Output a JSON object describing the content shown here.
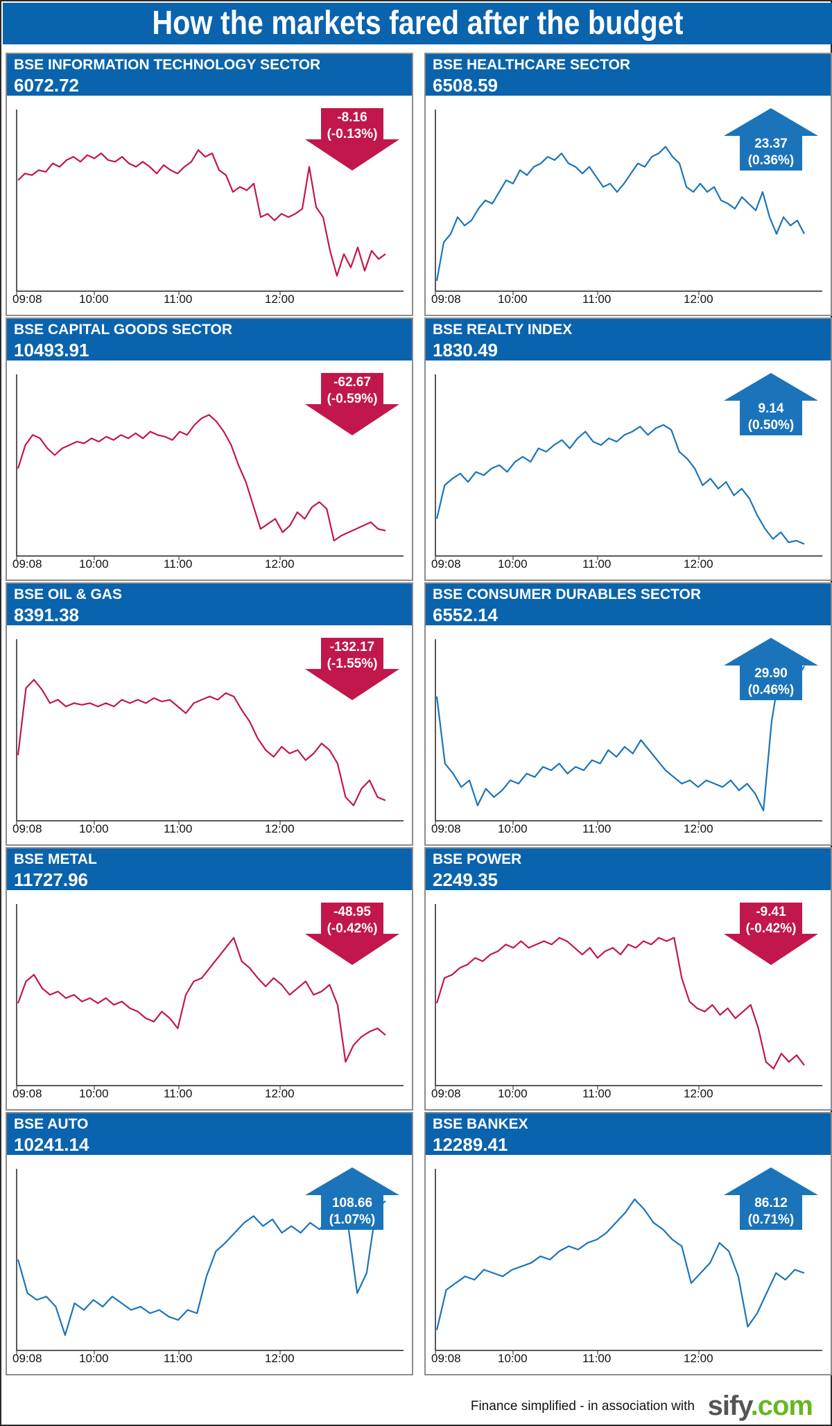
{
  "title": "How the markets fared after the budget",
  "footer": {
    "text": "Finance simplified - in association with",
    "logo_main": "sify",
    "logo_dot": ".",
    "logo_com": "com"
  },
  "x_ticks": [
    "09:08",
    "10:00",
    "11:00",
    "12:00"
  ],
  "colors": {
    "header": "#0a63ad",
    "down": "#c1174a",
    "up": "#1b74b9"
  },
  "chart_data": [
    {
      "type": "line",
      "name": "BSE INFORMATION TECHNOLOGY SECTOR",
      "value": "6072.72",
      "change": "-8.16",
      "change_pct": "(-0.13%)",
      "direction": "down",
      "x": [
        "09:08",
        "10:00",
        "11:00",
        "12:00"
      ],
      "series": [
        0.62,
        0.66,
        0.65,
        0.68,
        0.67,
        0.72,
        0.7,
        0.74,
        0.76,
        0.73,
        0.77,
        0.75,
        0.78,
        0.74,
        0.73,
        0.76,
        0.72,
        0.7,
        0.73,
        0.7,
        0.66,
        0.71,
        0.68,
        0.66,
        0.7,
        0.73,
        0.8,
        0.76,
        0.78,
        0.68,
        0.65,
        0.55,
        0.58,
        0.56,
        0.6,
        0.4,
        0.42,
        0.38,
        0.42,
        0.4,
        0.42,
        0.45,
        0.7,
        0.46,
        0.4,
        0.2,
        0.05,
        0.18,
        0.1,
        0.22,
        0.08,
        0.2,
        0.15,
        0.18
      ]
    },
    {
      "type": "line",
      "name": "BSE HEALTHCARE SECTOR",
      "value": "6508.59",
      "change": "23.37",
      "change_pct": "(0.36%)",
      "direction": "up",
      "x": [
        "09:08",
        "10:00",
        "11:00",
        "12:00"
      ],
      "series": [
        0.02,
        0.25,
        0.3,
        0.4,
        0.35,
        0.38,
        0.45,
        0.5,
        0.48,
        0.55,
        0.62,
        0.6,
        0.68,
        0.65,
        0.7,
        0.72,
        0.76,
        0.74,
        0.78,
        0.72,
        0.7,
        0.66,
        0.7,
        0.64,
        0.58,
        0.6,
        0.55,
        0.6,
        0.66,
        0.72,
        0.7,
        0.76,
        0.78,
        0.82,
        0.76,
        0.72,
        0.58,
        0.55,
        0.6,
        0.55,
        0.58,
        0.5,
        0.48,
        0.45,
        0.52,
        0.48,
        0.44,
        0.55,
        0.4,
        0.3,
        0.4,
        0.35,
        0.38,
        0.3
      ]
    },
    {
      "type": "line",
      "name": "BSE CAPITAL GOODS SECTOR",
      "value": "10493.91",
      "change": "-62.67",
      "change_pct": "(-0.59%)",
      "direction": "down",
      "x": [
        "09:08",
        "10:00",
        "11:00",
        "12:00"
      ],
      "series": [
        0.48,
        0.62,
        0.68,
        0.66,
        0.6,
        0.56,
        0.6,
        0.62,
        0.64,
        0.63,
        0.66,
        0.64,
        0.67,
        0.65,
        0.68,
        0.66,
        0.69,
        0.66,
        0.7,
        0.68,
        0.67,
        0.65,
        0.7,
        0.68,
        0.74,
        0.78,
        0.8,
        0.76,
        0.7,
        0.62,
        0.5,
        0.4,
        0.26,
        0.12,
        0.15,
        0.18,
        0.1,
        0.14,
        0.22,
        0.18,
        0.25,
        0.28,
        0.24,
        0.05,
        0.08,
        0.1,
        0.12,
        0.14,
        0.16,
        0.12,
        0.11
      ]
    },
    {
      "type": "line",
      "name": "BSE REALTY INDEX",
      "value": "1830.49",
      "change": "9.14",
      "change_pct": "(0.50%)",
      "direction": "up",
      "x": [
        "09:08",
        "10:00",
        "11:00",
        "12:00"
      ],
      "series": [
        0.18,
        0.38,
        0.42,
        0.45,
        0.4,
        0.46,
        0.44,
        0.48,
        0.5,
        0.46,
        0.52,
        0.55,
        0.52,
        0.6,
        0.58,
        0.62,
        0.65,
        0.6,
        0.66,
        0.7,
        0.64,
        0.62,
        0.66,
        0.64,
        0.68,
        0.7,
        0.73,
        0.68,
        0.72,
        0.74,
        0.71,
        0.58,
        0.54,
        0.48,
        0.38,
        0.42,
        0.36,
        0.4,
        0.32,
        0.36,
        0.3,
        0.2,
        0.12,
        0.06,
        0.1,
        0.04,
        0.05,
        0.03
      ]
    },
    {
      "type": "line",
      "name": "BSE OIL & GAS",
      "value": "8391.38",
      "change": "-132.17",
      "change_pct": "(-1.55%)",
      "direction": "down",
      "x": [
        "09:08",
        "10:00",
        "11:00",
        "12:00"
      ],
      "series": [
        0.35,
        0.75,
        0.8,
        0.74,
        0.66,
        0.68,
        0.64,
        0.66,
        0.65,
        0.66,
        0.64,
        0.66,
        0.64,
        0.68,
        0.66,
        0.68,
        0.66,
        0.69,
        0.67,
        0.68,
        0.64,
        0.6,
        0.66,
        0.68,
        0.7,
        0.68,
        0.72,
        0.7,
        0.62,
        0.55,
        0.45,
        0.38,
        0.34,
        0.4,
        0.36,
        0.38,
        0.32,
        0.36,
        0.42,
        0.38,
        0.3,
        0.1,
        0.05,
        0.15,
        0.2,
        0.1,
        0.08
      ]
    },
    {
      "type": "line",
      "name": "BSE CONSUMER DURABLES SECTOR",
      "value": "6552.14",
      "change": "29.90",
      "change_pct": "(0.46%)",
      "direction": "up",
      "x": [
        "09:08",
        "10:00",
        "11:00",
        "12:00"
      ],
      "series": [
        0.7,
        0.3,
        0.24,
        0.16,
        0.2,
        0.05,
        0.15,
        0.1,
        0.14,
        0.2,
        0.18,
        0.24,
        0.22,
        0.28,
        0.26,
        0.3,
        0.24,
        0.28,
        0.26,
        0.32,
        0.3,
        0.38,
        0.34,
        0.4,
        0.36,
        0.44,
        0.38,
        0.32,
        0.26,
        0.22,
        0.18,
        0.2,
        0.16,
        0.2,
        0.18,
        0.16,
        0.2,
        0.14,
        0.18,
        0.12,
        0.02,
        0.55,
        0.85,
        0.75,
        0.8,
        0.88
      ]
    },
    {
      "type": "line",
      "name": "BSE METAL",
      "value": "11727.96",
      "change": "-48.95",
      "change_pct": "(-0.42%)",
      "direction": "down",
      "x": [
        "09:08",
        "10:00",
        "11:00",
        "12:00"
      ],
      "series": [
        0.45,
        0.58,
        0.62,
        0.54,
        0.5,
        0.52,
        0.48,
        0.5,
        0.46,
        0.48,
        0.45,
        0.48,
        0.44,
        0.46,
        0.42,
        0.4,
        0.36,
        0.34,
        0.4,
        0.36,
        0.3,
        0.5,
        0.58,
        0.6,
        0.66,
        0.72,
        0.78,
        0.84,
        0.7,
        0.66,
        0.6,
        0.55,
        0.6,
        0.56,
        0.5,
        0.54,
        0.58,
        0.5,
        0.52,
        0.56,
        0.44,
        0.1,
        0.2,
        0.25,
        0.28,
        0.3,
        0.26
      ]
    },
    {
      "type": "line",
      "name": "BSE POWER",
      "value": "2249.35",
      "change": "-9.41",
      "change_pct": "(-0.42%)",
      "direction": "down",
      "x": [
        "09:08",
        "10:00",
        "11:00",
        "12:00"
      ],
      "series": [
        0.45,
        0.6,
        0.62,
        0.66,
        0.68,
        0.72,
        0.7,
        0.74,
        0.76,
        0.8,
        0.78,
        0.82,
        0.78,
        0.8,
        0.82,
        0.8,
        0.84,
        0.82,
        0.78,
        0.74,
        0.78,
        0.72,
        0.76,
        0.78,
        0.74,
        0.8,
        0.78,
        0.82,
        0.8,
        0.84,
        0.82,
        0.84,
        0.6,
        0.46,
        0.42,
        0.4,
        0.44,
        0.38,
        0.42,
        0.36,
        0.4,
        0.44,
        0.3,
        0.1,
        0.06,
        0.15,
        0.1,
        0.14,
        0.08
      ]
    },
    {
      "type": "line",
      "name": "BSE AUTO",
      "value": "10241.14",
      "change": "108.66",
      "change_pct": "(1.07%)",
      "direction": "up",
      "x": [
        "09:08",
        "10:00",
        "11:00",
        "12:00"
      ],
      "series": [
        0.5,
        0.3,
        0.26,
        0.28,
        0.22,
        0.05,
        0.24,
        0.2,
        0.26,
        0.22,
        0.28,
        0.24,
        0.2,
        0.22,
        0.18,
        0.2,
        0.16,
        0.14,
        0.2,
        0.18,
        0.4,
        0.55,
        0.6,
        0.66,
        0.72,
        0.76,
        0.7,
        0.74,
        0.66,
        0.7,
        0.66,
        0.72,
        0.68,
        0.74,
        0.78,
        0.72,
        0.3,
        0.42,
        0.8,
        0.85
      ]
    },
    {
      "type": "line",
      "name": "BSE BANKEX",
      "value": "12289.41",
      "change": "86.12",
      "change_pct": "(0.71%)",
      "direction": "up",
      "x": [
        "09:08",
        "10:00",
        "11:00",
        "12:00"
      ],
      "series": [
        0.08,
        0.32,
        0.36,
        0.4,
        0.38,
        0.44,
        0.42,
        0.4,
        0.44,
        0.46,
        0.48,
        0.52,
        0.5,
        0.55,
        0.58,
        0.56,
        0.6,
        0.62,
        0.66,
        0.72,
        0.78,
        0.86,
        0.8,
        0.72,
        0.68,
        0.62,
        0.58,
        0.36,
        0.42,
        0.48,
        0.6,
        0.55,
        0.4,
        0.1,
        0.18,
        0.3,
        0.42,
        0.38,
        0.44,
        0.42
      ]
    }
  ]
}
